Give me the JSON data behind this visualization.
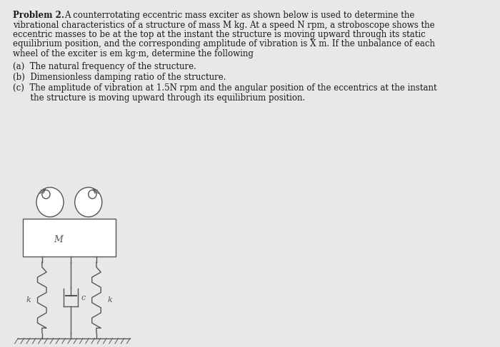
{
  "background_color": "#e8e8e8",
  "diagram_bg": "#f0f0f0",
  "text_color": "#1a1a1a",
  "diagram_color": "#555555",
  "font_size_main": 8.5,
  "line1_bold": "Problem 2.",
  "line1_rest": "      A counterrotating eccentric mass exciter as shown below is used to determine the",
  "line2": "vibrational characteristics of a structure of mass M kg. At a speed N rpm, a stroboscope shows the",
  "line3": "eccentric masses to be at the top at the instant the structure is moving upward through its static",
  "line4": "equilibrium position, and the corresponding amplitude of vibration is X m. If the unbalance of each",
  "line5": "wheel of the exciter is em kg·m, determine the following",
  "item_a": "(a)  The natural frequency of the structure.",
  "item_b": "(b)  Dimensionless damping ratio of the structure.",
  "item_c1": "(c)  The amplitude of vibration at 1.5N rpm and the angular position of the eccentrics at the instant",
  "item_c2": "      the structure is moving upward through its equilibrium position."
}
